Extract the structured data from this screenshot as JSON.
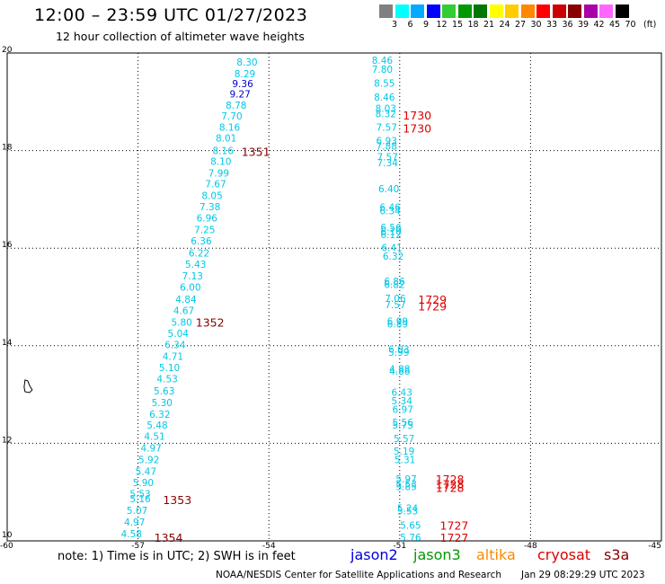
{
  "header": {
    "title": "12:00 – 23:59 UTC 01/27/2023",
    "subtitle": "12 hour collection of altimeter wave heights"
  },
  "legend": {
    "units": "(ft)",
    "bins": [
      {
        "label": "3",
        "color": "#808080"
      },
      {
        "label": "6",
        "color": "#00ffff"
      },
      {
        "label": "9",
        "color": "#00aaff"
      },
      {
        "label": "12",
        "color": "#0000ff"
      },
      {
        "label": "15",
        "color": "#33cc33"
      },
      {
        "label": "18",
        "color": "#009900"
      },
      {
        "label": "21",
        "color": "#007700"
      },
      {
        "label": "24",
        "color": "#ffff00"
      },
      {
        "label": "27",
        "color": "#ffcc00"
      },
      {
        "label": "30",
        "color": "#ff8800"
      },
      {
        "label": "33",
        "color": "#ff0000"
      },
      {
        "label": "36",
        "color": "#cc0000"
      },
      {
        "label": "39",
        "color": "#880000"
      },
      {
        "label": "42",
        "color": "#aa00aa"
      },
      {
        "label": "45",
        "color": "#ff66ff"
      },
      {
        "label": "70",
        "color": "#000000"
      }
    ]
  },
  "map": {
    "lon_range": [
      -60,
      -45
    ],
    "lat_range": [
      10,
      20
    ],
    "lon_ticks": [
      "-60",
      "-57",
      "-54",
      "-51",
      "-48",
      "-45"
    ],
    "lat_ticks": [
      "10",
      "12",
      "14",
      "16",
      "18",
      "20"
    ],
    "colors": {
      "cyan": "#00c8e6",
      "blue": "#0000cc",
      "red": "#dd0000",
      "maroon": "#880000"
    },
    "tracks": [
      {
        "name": "track-a",
        "points": [
          {
            "lat": 19.82,
            "lon": -54.5,
            "v": "8.30",
            "c": "cyan"
          },
          {
            "lat": 19.58,
            "lon": -54.55,
            "v": "8.29",
            "c": "cyan"
          },
          {
            "lat": 19.37,
            "lon": -54.6,
            "v": "9.36",
            "c": "blue"
          },
          {
            "lat": 19.16,
            "lon": -54.66,
            "v": "9.27",
            "c": "blue"
          },
          {
            "lat": 18.93,
            "lon": -54.75,
            "v": "8.78",
            "c": "cyan"
          },
          {
            "lat": 18.71,
            "lon": -54.85,
            "v": "7.70",
            "c": "cyan"
          },
          {
            "lat": 18.48,
            "lon": -54.9,
            "v": "8.16",
            "c": "cyan"
          },
          {
            "lat": 18.26,
            "lon": -54.98,
            "v": "8.01",
            "c": "cyan"
          },
          {
            "lat": 18.0,
            "lon": -55.05,
            "v": "8.16",
            "c": "cyan"
          },
          {
            "lat": 17.78,
            "lon": -55.1,
            "v": "8.10",
            "c": "cyan"
          },
          {
            "lat": 17.54,
            "lon": -55.15,
            "v": "7.99",
            "c": "cyan"
          },
          {
            "lat": 17.32,
            "lon": -55.22,
            "v": "7.67",
            "c": "cyan"
          },
          {
            "lat": 17.08,
            "lon": -55.3,
            "v": "8.05",
            "c": "cyan"
          },
          {
            "lat": 16.85,
            "lon": -55.35,
            "v": "7.38",
            "c": "cyan"
          },
          {
            "lat": 16.62,
            "lon": -55.42,
            "v": "6.96",
            "c": "cyan"
          },
          {
            "lat": 16.38,
            "lon": -55.47,
            "v": "7.25",
            "c": "cyan"
          },
          {
            "lat": 16.15,
            "lon": -55.55,
            "v": "6.36",
            "c": "cyan"
          },
          {
            "lat": 15.9,
            "lon": -55.6,
            "v": "6.22",
            "c": "cyan"
          },
          {
            "lat": 15.67,
            "lon": -55.68,
            "v": "5.43",
            "c": "cyan"
          },
          {
            "lat": 15.43,
            "lon": -55.75,
            "v": "7.13",
            "c": "cyan"
          },
          {
            "lat": 15.2,
            "lon": -55.8,
            "v": "6.00",
            "c": "cyan"
          },
          {
            "lat": 14.95,
            "lon": -55.9,
            "v": "4.84",
            "c": "cyan"
          },
          {
            "lat": 14.72,
            "lon": -55.95,
            "v": "4.67",
            "c": "cyan"
          },
          {
            "lat": 14.48,
            "lon": -56.0,
            "v": "5.80",
            "c": "cyan"
          },
          {
            "lat": 14.25,
            "lon": -56.08,
            "v": "5.04",
            "c": "cyan"
          },
          {
            "lat": 14.02,
            "lon": -56.15,
            "v": "6.34",
            "c": "cyan"
          },
          {
            "lat": 13.78,
            "lon": -56.2,
            "v": "4.71",
            "c": "cyan"
          },
          {
            "lat": 13.55,
            "lon": -56.28,
            "v": "5.10",
            "c": "cyan"
          },
          {
            "lat": 13.32,
            "lon": -56.33,
            "v": "4.53",
            "c": "cyan"
          },
          {
            "lat": 13.08,
            "lon": -56.4,
            "v": "5.63",
            "c": "cyan"
          },
          {
            "lat": 12.84,
            "lon": -56.45,
            "v": "5.30",
            "c": "cyan"
          },
          {
            "lat": 12.6,
            "lon": -56.5,
            "v": "6.32",
            "c": "cyan"
          },
          {
            "lat": 12.38,
            "lon": -56.56,
            "v": "5.48",
            "c": "cyan"
          },
          {
            "lat": 12.15,
            "lon": -56.62,
            "v": "4.51",
            "c": "cyan"
          },
          {
            "lat": 11.91,
            "lon": -56.7,
            "v": "4.97",
            "c": "cyan"
          },
          {
            "lat": 11.67,
            "lon": -56.75,
            "v": "5.92",
            "c": "cyan"
          },
          {
            "lat": 11.43,
            "lon": -56.82,
            "v": "5.47",
            "c": "cyan"
          },
          {
            "lat": 11.2,
            "lon": -56.88,
            "v": "5.90",
            "c": "cyan"
          },
          {
            "lat": 10.97,
            "lon": -56.95,
            "v": "5.53",
            "c": "cyan"
          },
          {
            "lat": 10.87,
            "lon": -56.95,
            "v": "5.16",
            "c": "cyan"
          },
          {
            "lat": 10.63,
            "lon": -57.02,
            "v": "5.07",
            "c": "cyan"
          },
          {
            "lat": 10.39,
            "lon": -57.08,
            "v": "4.97",
            "c": "cyan"
          },
          {
            "lat": 10.15,
            "lon": -57.15,
            "v": "4.58",
            "c": "cyan"
          }
        ]
      },
      {
        "name": "track-b",
        "points": [
          {
            "lat": 19.85,
            "lon": -51.4,
            "v": "8.46",
            "c": "cyan"
          },
          {
            "lat": 19.67,
            "lon": -51.4,
            "v": "7.80",
            "c": "cyan"
          },
          {
            "lat": 19.38,
            "lon": -51.35,
            "v": "8.55",
            "c": "cyan"
          },
          {
            "lat": 19.1,
            "lon": -51.35,
            "v": "8.46",
            "c": "cyan"
          },
          {
            "lat": 18.87,
            "lon": -51.32,
            "v": "8.03",
            "c": "cyan"
          },
          {
            "lat": 18.76,
            "lon": -51.32,
            "v": "8.32",
            "c": "cyan"
          },
          {
            "lat": 18.48,
            "lon": -51.3,
            "v": "7.57",
            "c": "cyan"
          },
          {
            "lat": 18.2,
            "lon": -51.3,
            "v": "6.93",
            "c": "cyan"
          },
          {
            "lat": 18.09,
            "lon": -51.3,
            "v": "7.88",
            "c": "cyan"
          },
          {
            "lat": 17.87,
            "lon": -51.28,
            "v": "7.57",
            "c": "cyan"
          },
          {
            "lat": 17.75,
            "lon": -51.28,
            "v": "7.34",
            "c": "cyan"
          },
          {
            "lat": 17.22,
            "lon": -51.25,
            "v": "6.40",
            "c": "cyan"
          },
          {
            "lat": 16.84,
            "lon": -51.22,
            "v": "6.46",
            "c": "cyan"
          },
          {
            "lat": 16.77,
            "lon": -51.22,
            "v": "6.34",
            "c": "cyan"
          },
          {
            "lat": 16.43,
            "lon": -51.2,
            "v": "6.56",
            "c": "cyan"
          },
          {
            "lat": 16.34,
            "lon": -51.2,
            "v": "6.10",
            "c": "cyan"
          },
          {
            "lat": 16.28,
            "lon": -51.2,
            "v": "6.12",
            "c": "cyan"
          },
          {
            "lat": 16.01,
            "lon": -51.18,
            "v": "6.41",
            "c": "cyan"
          },
          {
            "lat": 15.84,
            "lon": -51.15,
            "v": "6.32",
            "c": "cyan"
          },
          {
            "lat": 15.32,
            "lon": -51.12,
            "v": "6.86",
            "c": "cyan"
          },
          {
            "lat": 15.26,
            "lon": -51.12,
            "v": "6.82",
            "c": "cyan"
          },
          {
            "lat": 14.97,
            "lon": -51.1,
            "v": "7.06",
            "c": "cyan"
          },
          {
            "lat": 14.84,
            "lon": -51.1,
            "v": "7.57",
            "c": "cyan"
          },
          {
            "lat": 14.5,
            "lon": -51.05,
            "v": "6.99",
            "c": "cyan"
          },
          {
            "lat": 14.45,
            "lon": -51.05,
            "v": "6.89",
            "c": "cyan"
          },
          {
            "lat": 13.93,
            "lon": -51.02,
            "v": "6.03",
            "c": "cyan"
          },
          {
            "lat": 13.87,
            "lon": -51.02,
            "v": "5.99",
            "c": "cyan"
          },
          {
            "lat": 13.53,
            "lon": -51.0,
            "v": "4.88",
            "c": "cyan"
          },
          {
            "lat": 13.48,
            "lon": -51.0,
            "v": "4.86",
            "c": "cyan"
          },
          {
            "lat": 13.05,
            "lon": -50.95,
            "v": "6.43",
            "c": "cyan"
          },
          {
            "lat": 12.87,
            "lon": -50.95,
            "v": "5.34",
            "c": "cyan"
          },
          {
            "lat": 12.7,
            "lon": -50.93,
            "v": "6.97",
            "c": "cyan"
          },
          {
            "lat": 12.43,
            "lon": -50.93,
            "v": "5.56",
            "c": "cyan"
          },
          {
            "lat": 12.38,
            "lon": -50.93,
            "v": "5.75",
            "c": "cyan"
          },
          {
            "lat": 12.1,
            "lon": -50.9,
            "v": "5.57",
            "c": "cyan"
          },
          {
            "lat": 11.84,
            "lon": -50.9,
            "v": "5.19",
            "c": "cyan"
          },
          {
            "lat": 11.67,
            "lon": -50.88,
            "v": "5.31",
            "c": "cyan"
          },
          {
            "lat": 11.27,
            "lon": -50.85,
            "v": "5.97",
            "c": "cyan"
          },
          {
            "lat": 11.17,
            "lon": -50.85,
            "v": "5.53",
            "c": "cyan"
          },
          {
            "lat": 11.11,
            "lon": -50.85,
            "v": "5.85",
            "c": "cyan"
          },
          {
            "lat": 10.67,
            "lon": -50.82,
            "v": "5.24",
            "c": "cyan"
          },
          {
            "lat": 10.62,
            "lon": -50.82,
            "v": "5.53",
            "c": "cyan"
          },
          {
            "lat": 10.32,
            "lon": -50.75,
            "v": "5.65",
            "c": "cyan"
          },
          {
            "lat": 10.07,
            "lon": -50.75,
            "v": "5.76",
            "c": "cyan"
          }
        ]
      }
    ],
    "time_labels": [
      {
        "lat": 17.98,
        "lon": -54.3,
        "v": "1351",
        "c": "maroon"
      },
      {
        "lat": 14.48,
        "lon": -55.35,
        "v": "1352",
        "c": "maroon"
      },
      {
        "lat": 10.85,
        "lon": -56.1,
        "v": "1353",
        "c": "maroon"
      },
      {
        "lat": 10.07,
        "lon": -56.3,
        "v": "1354",
        "c": "maroon"
      },
      {
        "lat": 18.73,
        "lon": -50.6,
        "v": "1730",
        "c": "red"
      },
      {
        "lat": 18.46,
        "lon": -50.6,
        "v": "1730",
        "c": "red"
      },
      {
        "lat": 14.95,
        "lon": -50.25,
        "v": "1729",
        "c": "red"
      },
      {
        "lat": 14.82,
        "lon": -50.25,
        "v": "1729",
        "c": "red"
      },
      {
        "lat": 11.27,
        "lon": -49.85,
        "v": "1728",
        "c": "red"
      },
      {
        "lat": 11.17,
        "lon": -49.85,
        "v": "1728",
        "c": "red"
      },
      {
        "lat": 11.1,
        "lon": -49.85,
        "v": "1728",
        "c": "red"
      },
      {
        "lat": 10.32,
        "lon": -49.75,
        "v": "1727",
        "c": "red"
      },
      {
        "lat": 10.07,
        "lon": -49.75,
        "v": "1727",
        "c": "red"
      }
    ],
    "islands": [
      {
        "name": "island",
        "lat": 13.15,
        "lon": -59.55
      }
    ]
  },
  "footer": {
    "note": "note:  1) Time is in UTC;  2) SWH is in feet",
    "missions": [
      {
        "label": "jason2",
        "color": "#0000dd"
      },
      {
        "label": "jason3",
        "color": "#009900"
      },
      {
        "label": "altika",
        "color": "#ff8800"
      },
      {
        "label": "cryosat",
        "color": "#dd0000"
      },
      {
        "label": "s3a",
        "color": "#880000"
      }
    ],
    "credit": "NOAA/NESDIS Center for Satellite Applications and Research",
    "timestamp": "Jan 29 08:29:29 UTC 2023"
  }
}
